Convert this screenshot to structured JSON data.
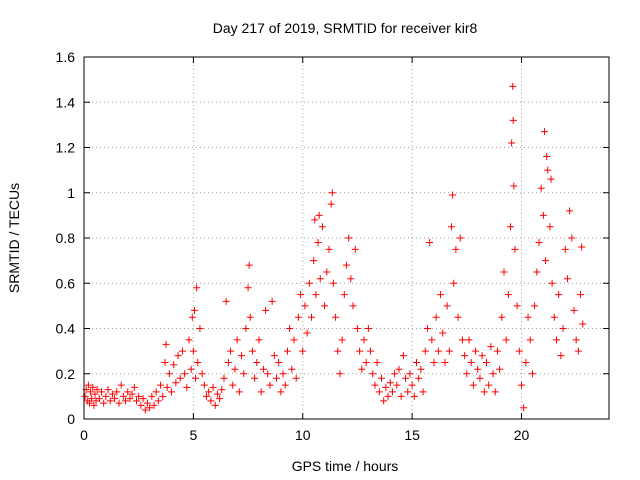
{
  "chart_data": {
    "type": "scatter",
    "title": "Day 217 of 2019, SRMTID for receiver kir8",
    "xlabel": "GPS time / hours",
    "ylabel": "SRMTID / TECUs",
    "xlim": [
      0,
      24
    ],
    "ylim": [
      0,
      1.6
    ],
    "xticks": [
      0,
      5,
      10,
      15,
      20
    ],
    "xtick_labels": [
      "0",
      "5",
      "10",
      "15",
      "20"
    ],
    "yticks": [
      0,
      0.2,
      0.4,
      0.6,
      0.8,
      1.0,
      1.2,
      1.4,
      1.6
    ],
    "ytick_labels": [
      "0",
      "0.2",
      "0.4",
      "0.6",
      "0.8",
      "1",
      "1.2",
      "1.4",
      "1.6"
    ],
    "grid": true,
    "marker": "+",
    "color": "#ff0000",
    "series": [
      {
        "name": "SRMTID",
        "points": [
          [
            0.05,
            0.1
          ],
          [
            0.1,
            0.13
          ],
          [
            0.15,
            0.08
          ],
          [
            0.2,
            0.15
          ],
          [
            0.25,
            0.07
          ],
          [
            0.3,
            0.12
          ],
          [
            0.35,
            0.09
          ],
          [
            0.4,
            0.14
          ],
          [
            0.45,
            0.06
          ],
          [
            0.5,
            0.11
          ],
          [
            0.55,
            0.08
          ],
          [
            0.6,
            0.13
          ],
          [
            0.7,
            0.09
          ],
          [
            0.8,
            0.12
          ],
          [
            0.9,
            0.07
          ],
          [
            1.0,
            0.1
          ],
          [
            1.1,
            0.13
          ],
          [
            1.2,
            0.08
          ],
          [
            1.3,
            0.11
          ],
          [
            1.4,
            0.09
          ],
          [
            1.5,
            0.12
          ],
          [
            1.6,
            0.07
          ],
          [
            1.7,
            0.15
          ],
          [
            1.8,
            0.1
          ],
          [
            1.9,
            0.08
          ],
          [
            2.0,
            0.12
          ],
          [
            2.1,
            0.09
          ],
          [
            2.2,
            0.11
          ],
          [
            2.3,
            0.14
          ],
          [
            2.4,
            0.08
          ],
          [
            2.5,
            0.1
          ],
          [
            2.6,
            0.06
          ],
          [
            2.7,
            0.09
          ],
          [
            2.8,
            0.04
          ],
          [
            2.9,
            0.07
          ],
          [
            3.0,
            0.05
          ],
          [
            3.1,
            0.1
          ],
          [
            3.2,
            0.06
          ],
          [
            3.3,
            0.12
          ],
          [
            3.4,
            0.08
          ],
          [
            3.5,
            0.15
          ],
          [
            3.6,
            0.1
          ],
          [
            3.7,
            0.25
          ],
          [
            3.75,
            0.33
          ],
          [
            3.8,
            0.14
          ],
          [
            3.9,
            0.2
          ],
          [
            4.0,
            0.12
          ],
          [
            4.1,
            0.24
          ],
          [
            4.2,
            0.16
          ],
          [
            4.3,
            0.28
          ],
          [
            4.4,
            0.18
          ],
          [
            4.5,
            0.3
          ],
          [
            4.6,
            0.2
          ],
          [
            4.7,
            0.14
          ],
          [
            4.8,
            0.35
          ],
          [
            4.9,
            0.22
          ],
          [
            4.95,
            0.45
          ],
          [
            5.0,
            0.3
          ],
          [
            5.05,
            0.48
          ],
          [
            5.1,
            0.18
          ],
          [
            5.15,
            0.58
          ],
          [
            5.2,
            0.25
          ],
          [
            5.3,
            0.4
          ],
          [
            5.4,
            0.2
          ],
          [
            5.5,
            0.15
          ],
          [
            5.6,
            0.1
          ],
          [
            5.7,
            0.12
          ],
          [
            5.8,
            0.08
          ],
          [
            5.9,
            0.14
          ],
          [
            6.0,
            0.06
          ],
          [
            6.1,
            0.11
          ],
          [
            6.2,
            0.09
          ],
          [
            6.3,
            0.13
          ],
          [
            6.4,
            0.18
          ],
          [
            6.5,
            0.52
          ],
          [
            6.6,
            0.25
          ],
          [
            6.7,
            0.3
          ],
          [
            6.8,
            0.15
          ],
          [
            6.9,
            0.22
          ],
          [
            7.0,
            0.35
          ],
          [
            7.1,
            0.12
          ],
          [
            7.2,
            0.28
          ],
          [
            7.3,
            0.2
          ],
          [
            7.4,
            0.4
          ],
          [
            7.5,
            0.58
          ],
          [
            7.55,
            0.68
          ],
          [
            7.6,
            0.45
          ],
          [
            7.7,
            0.3
          ],
          [
            7.8,
            0.18
          ],
          [
            7.9,
            0.25
          ],
          [
            8.0,
            0.35
          ],
          [
            8.1,
            0.12
          ],
          [
            8.2,
            0.22
          ],
          [
            8.3,
            0.48
          ],
          [
            8.4,
            0.2
          ],
          [
            8.5,
            0.15
          ],
          [
            8.6,
            0.52
          ],
          [
            8.7,
            0.28
          ],
          [
            8.8,
            0.18
          ],
          [
            8.9,
            0.25
          ],
          [
            9.0,
            0.12
          ],
          [
            9.1,
            0.2
          ],
          [
            9.2,
            0.15
          ],
          [
            9.3,
            0.3
          ],
          [
            9.4,
            0.4
          ],
          [
            9.5,
            0.22
          ],
          [
            9.6,
            0.35
          ],
          [
            9.7,
            0.18
          ],
          [
            9.8,
            0.45
          ],
          [
            9.9,
            0.55
          ],
          [
            10.0,
            0.3
          ],
          [
            10.1,
            0.5
          ],
          [
            10.2,
            0.38
          ],
          [
            10.3,
            0.6
          ],
          [
            10.4,
            0.45
          ],
          [
            10.5,
            0.7
          ],
          [
            10.55,
            0.88
          ],
          [
            10.6,
            0.55
          ],
          [
            10.7,
            0.78
          ],
          [
            10.75,
            0.9
          ],
          [
            10.8,
            0.62
          ],
          [
            10.9,
            0.85
          ],
          [
            11.0,
            0.5
          ],
          [
            11.1,
            0.65
          ],
          [
            11.2,
            0.75
          ],
          [
            11.3,
            0.95
          ],
          [
            11.35,
            1.0
          ],
          [
            11.4,
            0.6
          ],
          [
            11.5,
            0.45
          ],
          [
            11.6,
            0.3
          ],
          [
            11.7,
            0.2
          ],
          [
            11.8,
            0.35
          ],
          [
            11.9,
            0.55
          ],
          [
            12.0,
            0.68
          ],
          [
            12.1,
            0.8
          ],
          [
            12.2,
            0.62
          ],
          [
            12.3,
            0.5
          ],
          [
            12.4,
            0.75
          ],
          [
            12.5,
            0.4
          ],
          [
            12.6,
            0.3
          ],
          [
            12.7,
            0.22
          ],
          [
            12.8,
            0.35
          ],
          [
            12.9,
            0.25
          ],
          [
            13.0,
            0.4
          ],
          [
            13.1,
            0.3
          ],
          [
            13.2,
            0.2
          ],
          [
            13.3,
            0.15
          ],
          [
            13.4,
            0.25
          ],
          [
            13.5,
            0.12
          ],
          [
            13.6,
            0.18
          ],
          [
            13.7,
            0.08
          ],
          [
            13.8,
            0.14
          ],
          [
            13.9,
            0.1
          ],
          [
            14.0,
            0.16
          ],
          [
            14.1,
            0.12
          ],
          [
            14.2,
            0.2
          ],
          [
            14.3,
            0.15
          ],
          [
            14.4,
            0.22
          ],
          [
            14.5,
            0.1
          ],
          [
            14.6,
            0.28
          ],
          [
            14.7,
            0.18
          ],
          [
            14.8,
            0.12
          ],
          [
            14.9,
            0.2
          ],
          [
            15.0,
            0.15
          ],
          [
            15.1,
            0.1
          ],
          [
            15.2,
            0.25
          ],
          [
            15.3,
            0.18
          ],
          [
            15.4,
            0.22
          ],
          [
            15.5,
            0.12
          ],
          [
            15.6,
            0.3
          ],
          [
            15.7,
            0.4
          ],
          [
            15.8,
            0.78
          ],
          [
            15.9,
            0.35
          ],
          [
            16.0,
            0.25
          ],
          [
            16.1,
            0.45
          ],
          [
            16.2,
            0.3
          ],
          [
            16.3,
            0.55
          ],
          [
            16.4,
            0.38
          ],
          [
            16.5,
            0.25
          ],
          [
            16.6,
            0.5
          ],
          [
            16.7,
            0.3
          ],
          [
            16.8,
            0.85
          ],
          [
            16.85,
            0.99
          ],
          [
            16.9,
            0.6
          ],
          [
            17.0,
            0.75
          ],
          [
            17.1,
            0.45
          ],
          [
            17.2,
            0.8
          ],
          [
            17.3,
            0.35
          ],
          [
            17.4,
            0.28
          ],
          [
            17.5,
            0.2
          ],
          [
            17.6,
            0.35
          ],
          [
            17.7,
            0.25
          ],
          [
            17.8,
            0.15
          ],
          [
            17.9,
            0.3
          ],
          [
            18.0,
            0.22
          ],
          [
            18.1,
            0.18
          ],
          [
            18.2,
            0.28
          ],
          [
            18.3,
            0.12
          ],
          [
            18.4,
            0.25
          ],
          [
            18.5,
            0.15
          ],
          [
            18.6,
            0.32
          ],
          [
            18.7,
            0.2
          ],
          [
            18.8,
            0.12
          ],
          [
            18.9,
            0.3
          ],
          [
            19.0,
            0.22
          ],
          [
            19.1,
            0.45
          ],
          [
            19.2,
            0.65
          ],
          [
            19.3,
            0.35
          ],
          [
            19.4,
            0.55
          ],
          [
            19.5,
            0.85
          ],
          [
            19.55,
            1.22
          ],
          [
            19.6,
            1.47
          ],
          [
            19.62,
            1.32
          ],
          [
            19.65,
            1.03
          ],
          [
            19.7,
            0.75
          ],
          [
            19.8,
            0.5
          ],
          [
            19.9,
            0.3
          ],
          [
            20.0,
            0.15
          ],
          [
            20.1,
            0.05
          ],
          [
            20.2,
            0.25
          ],
          [
            20.3,
            0.45
          ],
          [
            20.4,
            0.35
          ],
          [
            20.5,
            0.2
          ],
          [
            20.6,
            0.5
          ],
          [
            20.7,
            0.65
          ],
          [
            20.8,
            0.78
          ],
          [
            20.9,
            1.02
          ],
          [
            21.0,
            0.9
          ],
          [
            21.05,
            1.27
          ],
          [
            21.1,
            0.7
          ],
          [
            21.15,
            1.16
          ],
          [
            21.2,
            1.1
          ],
          [
            21.3,
            0.85
          ],
          [
            21.35,
            1.06
          ],
          [
            21.4,
            0.6
          ],
          [
            21.5,
            0.45
          ],
          [
            21.6,
            0.35
          ],
          [
            21.7,
            0.55
          ],
          [
            21.8,
            0.28
          ],
          [
            21.9,
            0.4
          ],
          [
            22.0,
            0.75
          ],
          [
            22.1,
            0.62
          ],
          [
            22.2,
            0.92
          ],
          [
            22.3,
            0.8
          ],
          [
            22.4,
            0.48
          ],
          [
            22.5,
            0.35
          ],
          [
            22.6,
            0.3
          ],
          [
            22.7,
            0.55
          ],
          [
            22.75,
            0.76
          ],
          [
            22.8,
            0.42
          ]
        ]
      }
    ]
  }
}
